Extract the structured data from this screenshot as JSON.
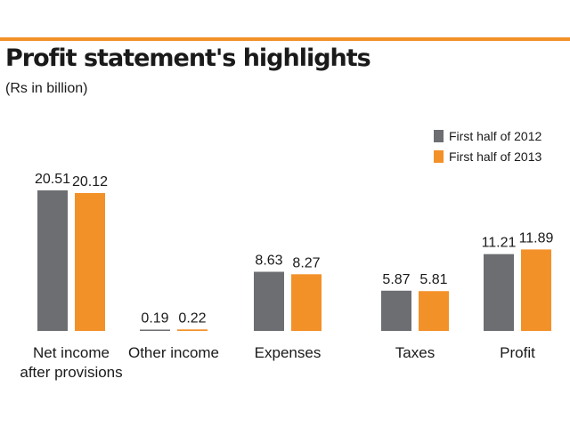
{
  "colors": {
    "accent": "#f39129",
    "series_2012": "#6d6e71",
    "series_2013": "#f39129"
  },
  "chart_data": {
    "type": "bar",
    "title": "Profit statement's  highlights",
    "subtitle": "(Rs in billion)",
    "categories": [
      [
        "Net income",
        "after provisions"
      ],
      [
        "Other income"
      ],
      [
        "Expenses"
      ],
      [
        "Taxes"
      ],
      [
        "Profit"
      ]
    ],
    "series": [
      {
        "name": "First half of 2012",
        "color": "#6d6e71",
        "values": [
          20.51,
          0.19,
          8.63,
          5.87,
          11.21
        ],
        "labels": [
          "20.51",
          "0.19",
          "8.63",
          "5.87",
          "11.21"
        ]
      },
      {
        "name": "First half of 2013",
        "color": "#f39129",
        "values": [
          20.12,
          0.22,
          8.27,
          5.81,
          11.89
        ],
        "labels": [
          "20.12",
          "0.22",
          "8.27",
          "5.81",
          "11.89"
        ]
      }
    ],
    "ylim": [
      0,
      20.51
    ],
    "legend": "top-right",
    "grid": false
  }
}
